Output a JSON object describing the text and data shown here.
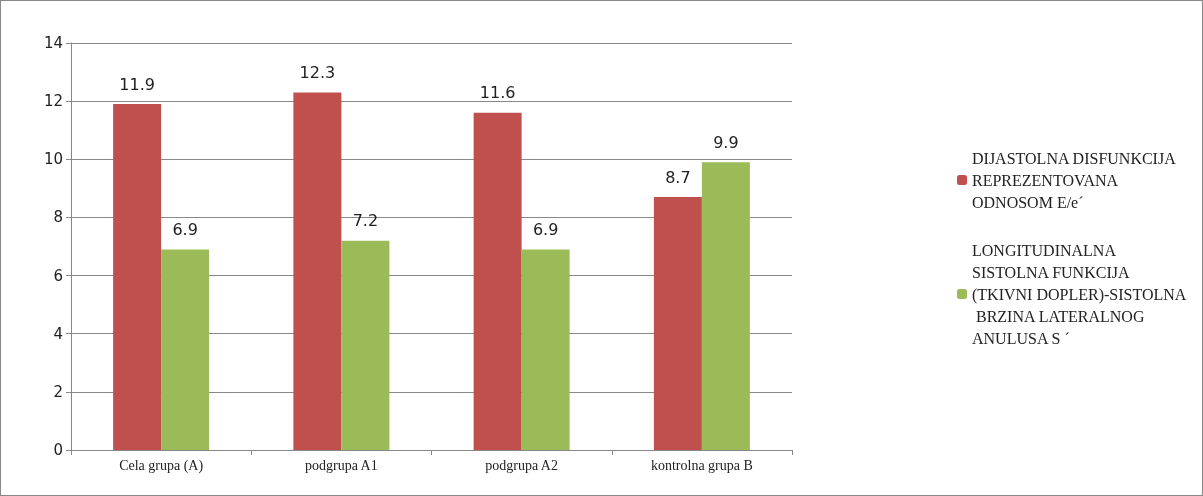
{
  "chart_data": {
    "type": "bar",
    "categories": [
      "Cela grupa (A)",
      "podgrupa A1",
      "podgrupa A2",
      "kontrolna grupa B"
    ],
    "series": [
      {
        "name": "DIJASTOLNA DISFUNKCIJA REPREZENTOVANA ODNOSOM E/e´",
        "color": "#c0504d",
        "values": [
          11.9,
          12.3,
          11.6,
          8.7
        ]
      },
      {
        "name": "LONGITUDINALNA SISTOLNA FUNKCIJA (TKIVNI DOPLER)-SISTOLNA BRZINA LATERALNOG ANULUSA S ´",
        "color": "#9bbb59",
        "values": [
          6.9,
          7.2,
          6.9,
          9.9
        ]
      }
    ],
    "ylim": [
      0,
      14
    ],
    "yticks": [
      0,
      2,
      4,
      6,
      8,
      10,
      12,
      14
    ],
    "grid": "y",
    "legend": "right",
    "data_labels": true
  }
}
